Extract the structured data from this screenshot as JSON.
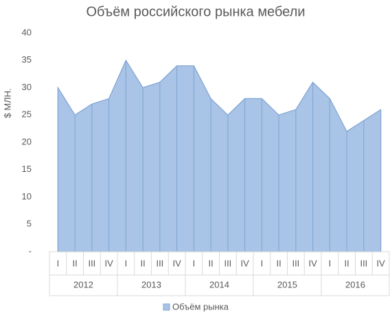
{
  "chart_data": {
    "type": "area",
    "title": "Объём российского рынка мебели",
    "y_label": "$ МЛН.",
    "categories": [
      "I",
      "II",
      "III",
      "IV",
      "I",
      "II",
      "III",
      "IV",
      "I",
      "II",
      "III",
      "IV",
      "I",
      "II",
      "III",
      "IV",
      "I",
      "II",
      "III",
      "IV"
    ],
    "groups": [
      "2012",
      "2013",
      "2014",
      "2015",
      "2016"
    ],
    "series": [
      {
        "name": "Объём рынка",
        "color": "#a9c4e6",
        "values": [
          30,
          25,
          27,
          28,
          35,
          30,
          31,
          34,
          34,
          28,
          25,
          28,
          28,
          25,
          26,
          31,
          28,
          22,
          24,
          26
        ]
      }
    ],
    "ylim": [
      0,
      40
    ],
    "yticks": [
      {
        "value": 0,
        "label": "-"
      },
      5,
      10,
      15,
      20,
      25,
      30,
      35,
      40
    ]
  }
}
